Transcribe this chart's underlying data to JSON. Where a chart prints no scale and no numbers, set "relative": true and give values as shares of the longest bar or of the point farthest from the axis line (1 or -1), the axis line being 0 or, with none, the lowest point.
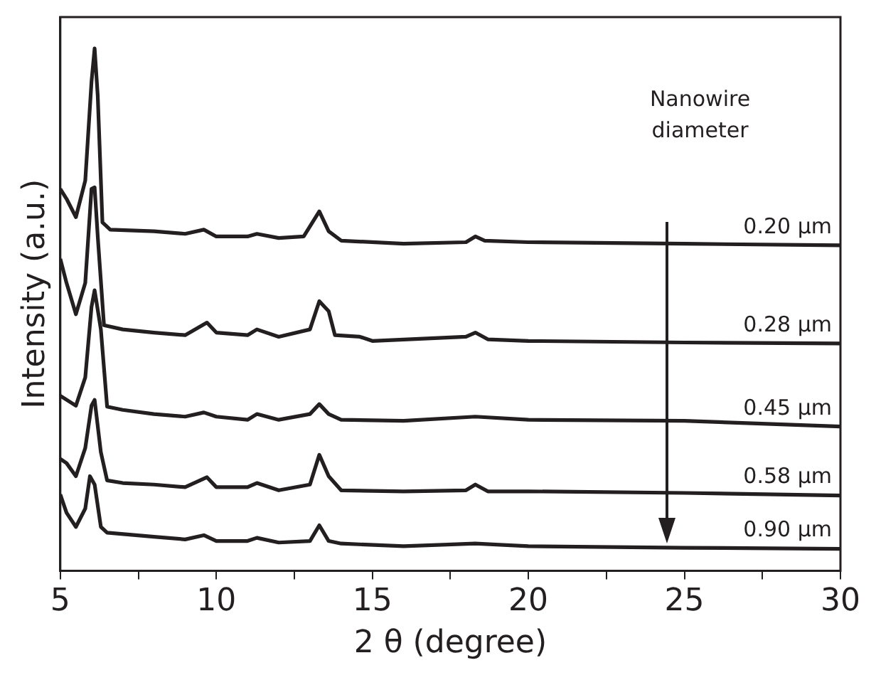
{
  "chart_data": {
    "type": "line",
    "relative": true,
    "xlabel": "2 θ (degree)",
    "ylabel": "Intensity (a.u.)",
    "annotations": [
      "Nanowire diameter"
    ],
    "xlim": [
      5,
      30
    ],
    "xticks": [
      5,
      {
        "value": 7.5,
        "label": null
      },
      10,
      {
        "value": 12.5,
        "label": null
      },
      15,
      {
        "value": 17.5,
        "label": null
      },
      20,
      {
        "value": 22.5,
        "label": null
      },
      25,
      {
        "value": 27.5,
        "label": null
      },
      30
    ],
    "legend": false,
    "marker": "none",
    "line_style": "solid",
    "grid": false,
    "series": [
      {
        "name": "0.20 μm",
        "color": "#231f20",
        "x": [
          5,
          5.2,
          5.5,
          5.8,
          6.0,
          6.1,
          6.2,
          6.35,
          6.6,
          8,
          9,
          9.6,
          10,
          11,
          11.3,
          12,
          12.8,
          13.3,
          13.6,
          14,
          16,
          18,
          18.3,
          18.6,
          20,
          25,
          30
        ],
        "values": [
          0.731,
          0.712,
          0.677,
          0.747,
          0.936,
          1.0,
          0.909,
          0.667,
          0.653,
          0.65,
          0.645,
          0.653,
          0.64,
          0.64,
          0.645,
          0.637,
          0.64,
          0.688,
          0.65,
          0.632,
          0.626,
          0.629,
          0.64,
          0.632,
          0.629,
          0.626,
          0.623
        ]
      },
      {
        "name": "0.28 μm",
        "color": "#231f20",
        "x": [
          5,
          5.2,
          5.5,
          5.8,
          6.0,
          6.1,
          6.2,
          6.4,
          7,
          8,
          9,
          9.7,
          10,
          11,
          11.3,
          12,
          13,
          13.3,
          13.6,
          13.8,
          14.6,
          15,
          18,
          18.3,
          18.7,
          20,
          25,
          30
        ],
        "values": [
          0.597,
          0.551,
          0.491,
          0.551,
          0.731,
          0.734,
          0.64,
          0.47,
          0.462,
          0.456,
          0.451,
          0.475,
          0.456,
          0.451,
          0.462,
          0.448,
          0.462,
          0.516,
          0.497,
          0.451,
          0.448,
          0.44,
          0.448,
          0.456,
          0.443,
          0.44,
          0.437,
          0.435
        ]
      },
      {
        "name": "0.45 μm",
        "color": "#231f20",
        "x": [
          5,
          5.5,
          5.8,
          6.0,
          6.1,
          6.3,
          6.5,
          7,
          8,
          9,
          9.6,
          10,
          11,
          11.3,
          12,
          13,
          13.3,
          13.6,
          14,
          16,
          18.3,
          20,
          25,
          30
        ],
        "values": [
          0.335,
          0.316,
          0.37,
          0.505,
          0.537,
          0.462,
          0.314,
          0.308,
          0.3,
          0.295,
          0.303,
          0.295,
          0.289,
          0.3,
          0.289,
          0.3,
          0.319,
          0.3,
          0.289,
          0.287,
          0.295,
          0.289,
          0.287,
          0.276
        ]
      },
      {
        "name": "0.58 μm",
        "color": "#231f20",
        "x": [
          5,
          5.2,
          5.5,
          5.8,
          6.0,
          6.1,
          6.3,
          6.5,
          7,
          8,
          9,
          9.7,
          10,
          11,
          11.3,
          12,
          13,
          13.3,
          13.6,
          14,
          16,
          18,
          18.3,
          18.7,
          20,
          25,
          30
        ],
        "values": [
          0.214,
          0.206,
          0.181,
          0.235,
          0.316,
          0.327,
          0.227,
          0.173,
          0.168,
          0.165,
          0.16,
          0.179,
          0.16,
          0.16,
          0.168,
          0.154,
          0.165,
          0.222,
          0.181,
          0.154,
          0.152,
          0.154,
          0.165,
          0.152,
          0.152,
          0.149,
          0.144
        ]
      },
      {
        "name": "0.90 μm",
        "color": "#231f20",
        "x": [
          5,
          5.2,
          5.5,
          5.8,
          5.95,
          6.1,
          6.3,
          6.5,
          8,
          9,
          9.6,
          10,
          11,
          11.3,
          12,
          13,
          13.3,
          13.6,
          14,
          16,
          18.3,
          20,
          25,
          30
        ],
        "values": [
          0.146,
          0.111,
          0.084,
          0.119,
          0.181,
          0.165,
          0.084,
          0.073,
          0.065,
          0.06,
          0.068,
          0.057,
          0.057,
          0.063,
          0.054,
          0.057,
          0.087,
          0.057,
          0.052,
          0.047,
          0.052,
          0.047,
          0.044,
          0.042
        ]
      }
    ]
  }
}
